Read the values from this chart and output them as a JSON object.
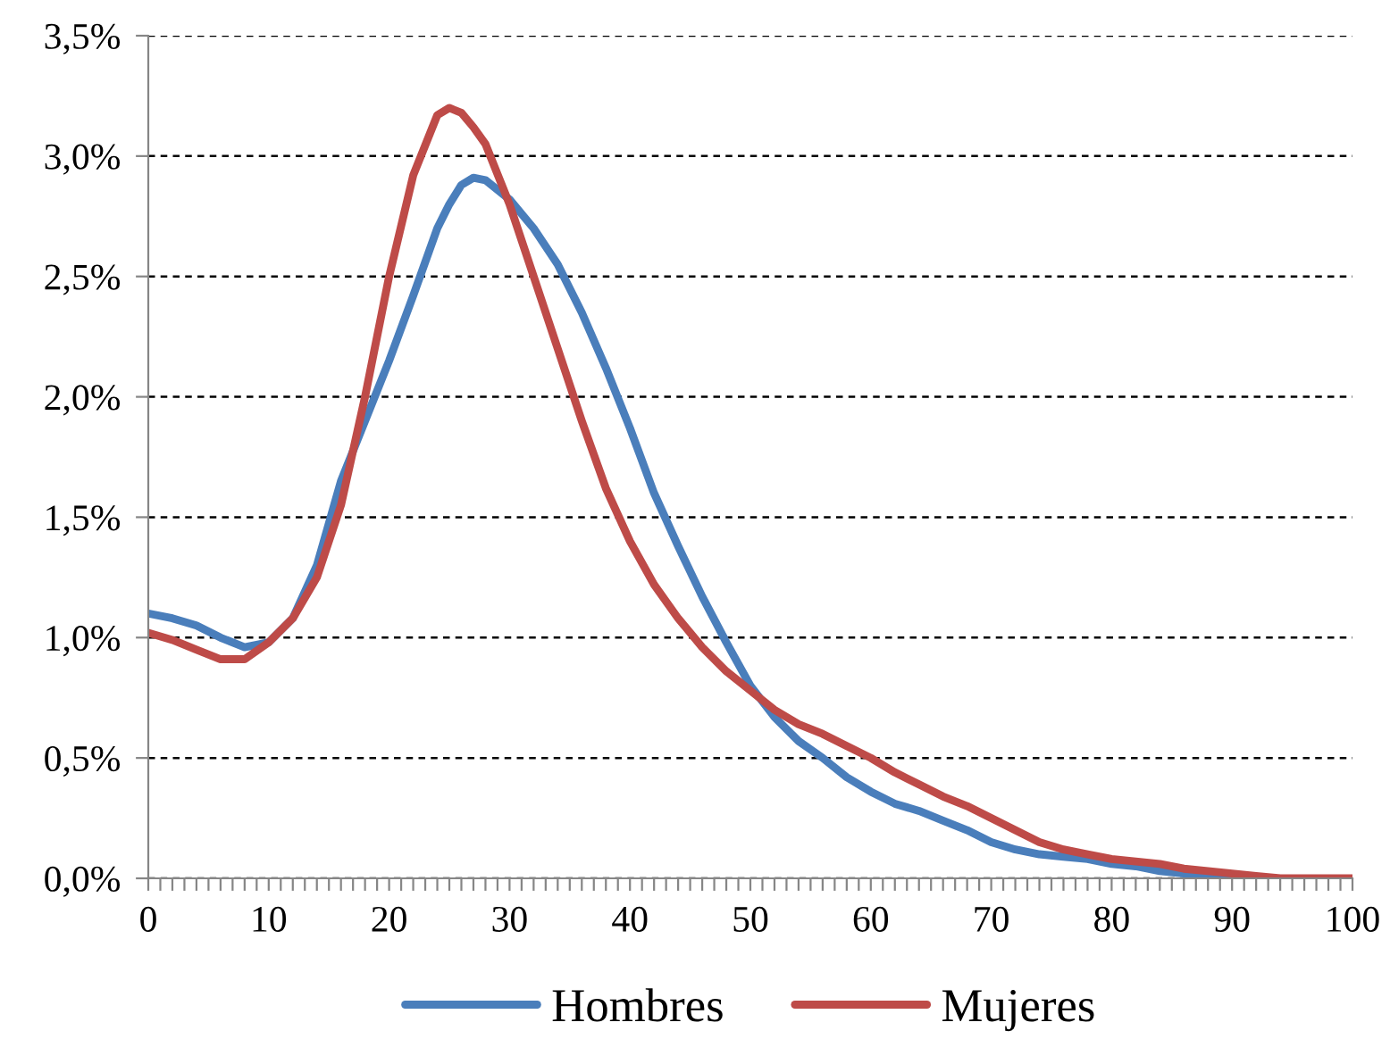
{
  "chart_data": {
    "type": "line",
    "x": [
      0,
      2,
      4,
      6,
      8,
      10,
      12,
      14,
      16,
      18,
      20,
      22,
      24,
      25,
      26,
      27,
      28,
      30,
      32,
      34,
      36,
      38,
      40,
      42,
      44,
      46,
      48,
      50,
      52,
      54,
      56,
      58,
      60,
      62,
      64,
      66,
      68,
      70,
      72,
      74,
      76,
      78,
      80,
      82,
      84,
      86,
      88,
      90,
      92,
      94,
      96,
      98,
      100
    ],
    "series": [
      {
        "name": "Hombres",
        "color": "#4a7ebb",
        "values": [
          1.1,
          1.08,
          1.05,
          1.0,
          0.96,
          0.98,
          1.08,
          1.3,
          1.65,
          1.9,
          2.15,
          2.42,
          2.7,
          2.8,
          2.88,
          2.91,
          2.9,
          2.82,
          2.7,
          2.55,
          2.35,
          2.12,
          1.87,
          1.6,
          1.38,
          1.17,
          0.98,
          0.8,
          0.67,
          0.57,
          0.5,
          0.42,
          0.36,
          0.31,
          0.28,
          0.24,
          0.2,
          0.15,
          0.12,
          0.1,
          0.09,
          0.08,
          0.06,
          0.05,
          0.03,
          0.02,
          0.01,
          0.01,
          0,
          null,
          null,
          null,
          null
        ]
      },
      {
        "name": "Mujeres",
        "color": "#be4b48",
        "values": [
          1.02,
          0.99,
          0.95,
          0.91,
          0.91,
          0.98,
          1.08,
          1.25,
          1.55,
          2.0,
          2.5,
          2.92,
          3.17,
          3.2,
          3.18,
          3.12,
          3.05,
          2.8,
          2.5,
          2.2,
          1.9,
          1.62,
          1.4,
          1.22,
          1.08,
          0.96,
          0.86,
          0.78,
          0.7,
          0.64,
          0.6,
          0.55,
          0.5,
          0.44,
          0.39,
          0.34,
          0.3,
          0.25,
          0.2,
          0.15,
          0.12,
          0.1,
          0.08,
          0.07,
          0.06,
          0.04,
          0.03,
          0.02,
          0.01,
          0,
          0,
          0,
          0
        ]
      }
    ],
    "xlim": [
      0,
      100
    ],
    "xticks": [
      0,
      {
        "value": 1,
        "label": null
      },
      {
        "value": 2,
        "label": null
      },
      {
        "value": 3,
        "label": null
      },
      {
        "value": 4,
        "label": null
      },
      {
        "value": 5,
        "label": null
      },
      {
        "value": 6,
        "label": null
      },
      {
        "value": 7,
        "label": null
      },
      {
        "value": 8,
        "label": null
      },
      {
        "value": 9,
        "label": null
      },
      10,
      {
        "value": 11,
        "label": null
      },
      {
        "value": 12,
        "label": null
      },
      {
        "value": 13,
        "label": null
      },
      {
        "value": 14,
        "label": null
      },
      {
        "value": 15,
        "label": null
      },
      {
        "value": 16,
        "label": null
      },
      {
        "value": 17,
        "label": null
      },
      {
        "value": 18,
        "label": null
      },
      {
        "value": 19,
        "label": null
      },
      20,
      {
        "value": 21,
        "label": null
      },
      {
        "value": 22,
        "label": null
      },
      {
        "value": 23,
        "label": null
      },
      {
        "value": 24,
        "label": null
      },
      {
        "value": 25,
        "label": null
      },
      {
        "value": 26,
        "label": null
      },
      {
        "value": 27,
        "label": null
      },
      {
        "value": 28,
        "label": null
      },
      {
        "value": 29,
        "label": null
      },
      30,
      {
        "value": 31,
        "label": null
      },
      {
        "value": 32,
        "label": null
      },
      {
        "value": 33,
        "label": null
      },
      {
        "value": 34,
        "label": null
      },
      {
        "value": 35,
        "label": null
      },
      {
        "value": 36,
        "label": null
      },
      {
        "value": 37,
        "label": null
      },
      {
        "value": 38,
        "label": null
      },
      {
        "value": 39,
        "label": null
      },
      40,
      {
        "value": 41,
        "label": null
      },
      {
        "value": 42,
        "label": null
      },
      {
        "value": 43,
        "label": null
      },
      {
        "value": 44,
        "label": null
      },
      {
        "value": 45,
        "label": null
      },
      {
        "value": 46,
        "label": null
      },
      {
        "value": 47,
        "label": null
      },
      {
        "value": 48,
        "label": null
      },
      {
        "value": 49,
        "label": null
      },
      50,
      {
        "value": 51,
        "label": null
      },
      {
        "value": 52,
        "label": null
      },
      {
        "value": 53,
        "label": null
      },
      {
        "value": 54,
        "label": null
      },
      {
        "value": 55,
        "label": null
      },
      {
        "value": 56,
        "label": null
      },
      {
        "value": 57,
        "label": null
      },
      {
        "value": 58,
        "label": null
      },
      {
        "value": 59,
        "label": null
      },
      60,
      {
        "value": 61,
        "label": null
      },
      {
        "value": 62,
        "label": null
      },
      {
        "value": 63,
        "label": null
      },
      {
        "value": 64,
        "label": null
      },
      {
        "value": 65,
        "label": null
      },
      {
        "value": 66,
        "label": null
      },
      {
        "value": 67,
        "label": null
      },
      {
        "value": 68,
        "label": null
      },
      {
        "value": 69,
        "label": null
      },
      70,
      {
        "value": 71,
        "label": null
      },
      {
        "value": 72,
        "label": null
      },
      {
        "value": 73,
        "label": null
      },
      {
        "value": 74,
        "label": null
      },
      {
        "value": 75,
        "label": null
      },
      {
        "value": 76,
        "label": null
      },
      {
        "value": 77,
        "label": null
      },
      {
        "value": 78,
        "label": null
      },
      {
        "value": 79,
        "label": null
      },
      80,
      {
        "value": 81,
        "label": null
      },
      {
        "value": 82,
        "label": null
      },
      {
        "value": 83,
        "label": null
      },
      {
        "value": 84,
        "label": null
      },
      {
        "value": 85,
        "label": null
      },
      {
        "value": 86,
        "label": null
      },
      {
        "value": 87,
        "label": null
      },
      {
        "value": 88,
        "label": null
      },
      {
        "value": 89,
        "label": null
      },
      90,
      {
        "value": 91,
        "label": null
      },
      {
        "value": 92,
        "label": null
      },
      {
        "value": 93,
        "label": null
      },
      {
        "value": 94,
        "label": null
      },
      {
        "value": 95,
        "label": null
      },
      {
        "value": 96,
        "label": null
      },
      {
        "value": 97,
        "label": null
      },
      {
        "value": 98,
        "label": null
      },
      {
        "value": 99,
        "label": null
      },
      100
    ],
    "ylim": [
      0,
      3.5
    ],
    "yticks": [
      {
        "value": 0,
        "label": "0,0%"
      },
      {
        "value": 0.5,
        "label": "0,5%"
      },
      {
        "value": 1,
        "label": "1,0%"
      },
      {
        "value": 1.5,
        "label": "1,5%"
      },
      {
        "value": 2,
        "label": "2,0%"
      },
      {
        "value": 2.5,
        "label": "2,5%"
      },
      {
        "value": 3,
        "label": "3,0%"
      },
      {
        "value": 3.5,
        "label": "3,5%"
      }
    ],
    "grid": "y",
    "legend": "bottom",
    "marker": "none",
    "line_style": "solid"
  }
}
